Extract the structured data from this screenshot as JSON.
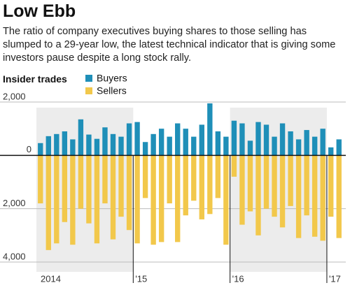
{
  "chart_data": {
    "type": "diverging-bar",
    "title": "Low Ebb",
    "subtitle": "The ratio of company executives buying shares to those selling has slumped to a 29-year low, the latest technical indicator that is giving some investors pause despite a long stock rally.",
    "legend_title": "Insider trades",
    "categories": [
      "2014",
      null,
      null,
      null,
      null,
      null,
      null,
      null,
      null,
      null,
      null,
      null,
      "'15",
      null,
      null,
      null,
      null,
      null,
      null,
      null,
      null,
      null,
      null,
      null,
      "'16",
      null,
      null,
      null,
      null,
      null,
      null,
      null,
      null,
      null,
      null,
      null,
      "'17",
      null
    ],
    "series": [
      {
        "name": "Buyers",
        "color": "#1f8fb8",
        "values": [
          460,
          720,
          800,
          900,
          600,
          1350,
          780,
          620,
          1050,
          800,
          700,
          1200,
          1250,
          500,
          800,
          1000,
          700,
          1200,
          1000,
          700,
          1150,
          1950,
          900,
          700,
          1300,
          1200,
          550,
          1250,
          1150,
          700,
          1200,
          900,
          600,
          950,
          700,
          1000,
          300,
          600
        ]
      },
      {
        "name": "Sellers",
        "color": "#f2c84b",
        "values": [
          -1800,
          -3550,
          -3300,
          -2500,
          -3350,
          -2000,
          -2550,
          -3300,
          -1800,
          -3150,
          -2300,
          -2800,
          -3300,
          -1600,
          -3350,
          -3250,
          -1800,
          -3250,
          -2250,
          -1700,
          -2400,
          -2200,
          -1600,
          -3350,
          -800,
          -2600,
          -2100,
          -3000,
          -2000,
          -2300,
          -2700,
          -1900,
          -3100,
          -2250,
          -3050,
          -3200,
          -2300,
          -3100
        ]
      }
    ],
    "ylim": [
      -4000,
      2000
    ],
    "yticks": [
      {
        "value": 2000,
        "label": "2,000"
      },
      0,
      {
        "value": -2000,
        "label": "2,000"
      },
      {
        "value": -4000,
        "label": "4,000"
      }
    ],
    "grid": true
  }
}
